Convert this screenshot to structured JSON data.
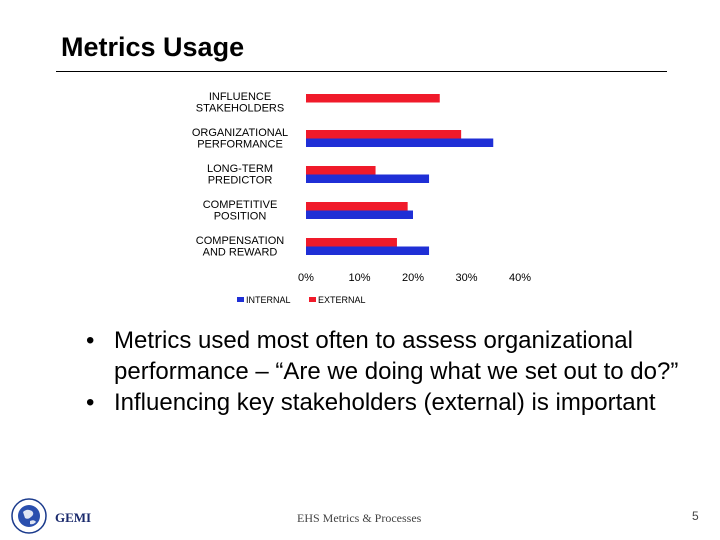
{
  "slide": {
    "title": "Metrics Usage",
    "bullets": [
      "Metrics used most often to assess organizational performance – “Are we doing what we set out to do?”",
      "Influencing key stakeholders (external) is important"
    ],
    "bullet_glyph": "•",
    "footer": {
      "brand": "GEMI",
      "center": "EHS Metrics & Processes",
      "page": "5"
    }
  },
  "colors": {
    "internal": "#1f2fd6",
    "external": "#f01a2a"
  },
  "chart_data": {
    "type": "bar",
    "orientation": "horizontal",
    "categories": [
      [
        "INFLUENCE",
        "STAKEHOLDERS"
      ],
      [
        "ORGANIZATIONAL",
        "PERFORMANCE"
      ],
      [
        "LONG-TERM",
        "PREDICTOR"
      ],
      [
        "COMPETITIVE",
        "POSITION"
      ],
      [
        "COMPENSATION",
        "AND REWARD"
      ]
    ],
    "series": [
      {
        "name": "INTERNAL",
        "color": "#1f2fd6",
        "values": [
          0,
          35,
          23,
          20,
          23
        ]
      },
      {
        "name": "EXTERNAL",
        "color": "#f01a2a",
        "values": [
          25,
          29,
          13,
          19,
          17
        ]
      }
    ],
    "xlim": [
      0,
      40
    ],
    "xticks": [
      "0%",
      "10%",
      "20%",
      "30%",
      "40%"
    ],
    "legend": "bottom",
    "grid": false
  }
}
